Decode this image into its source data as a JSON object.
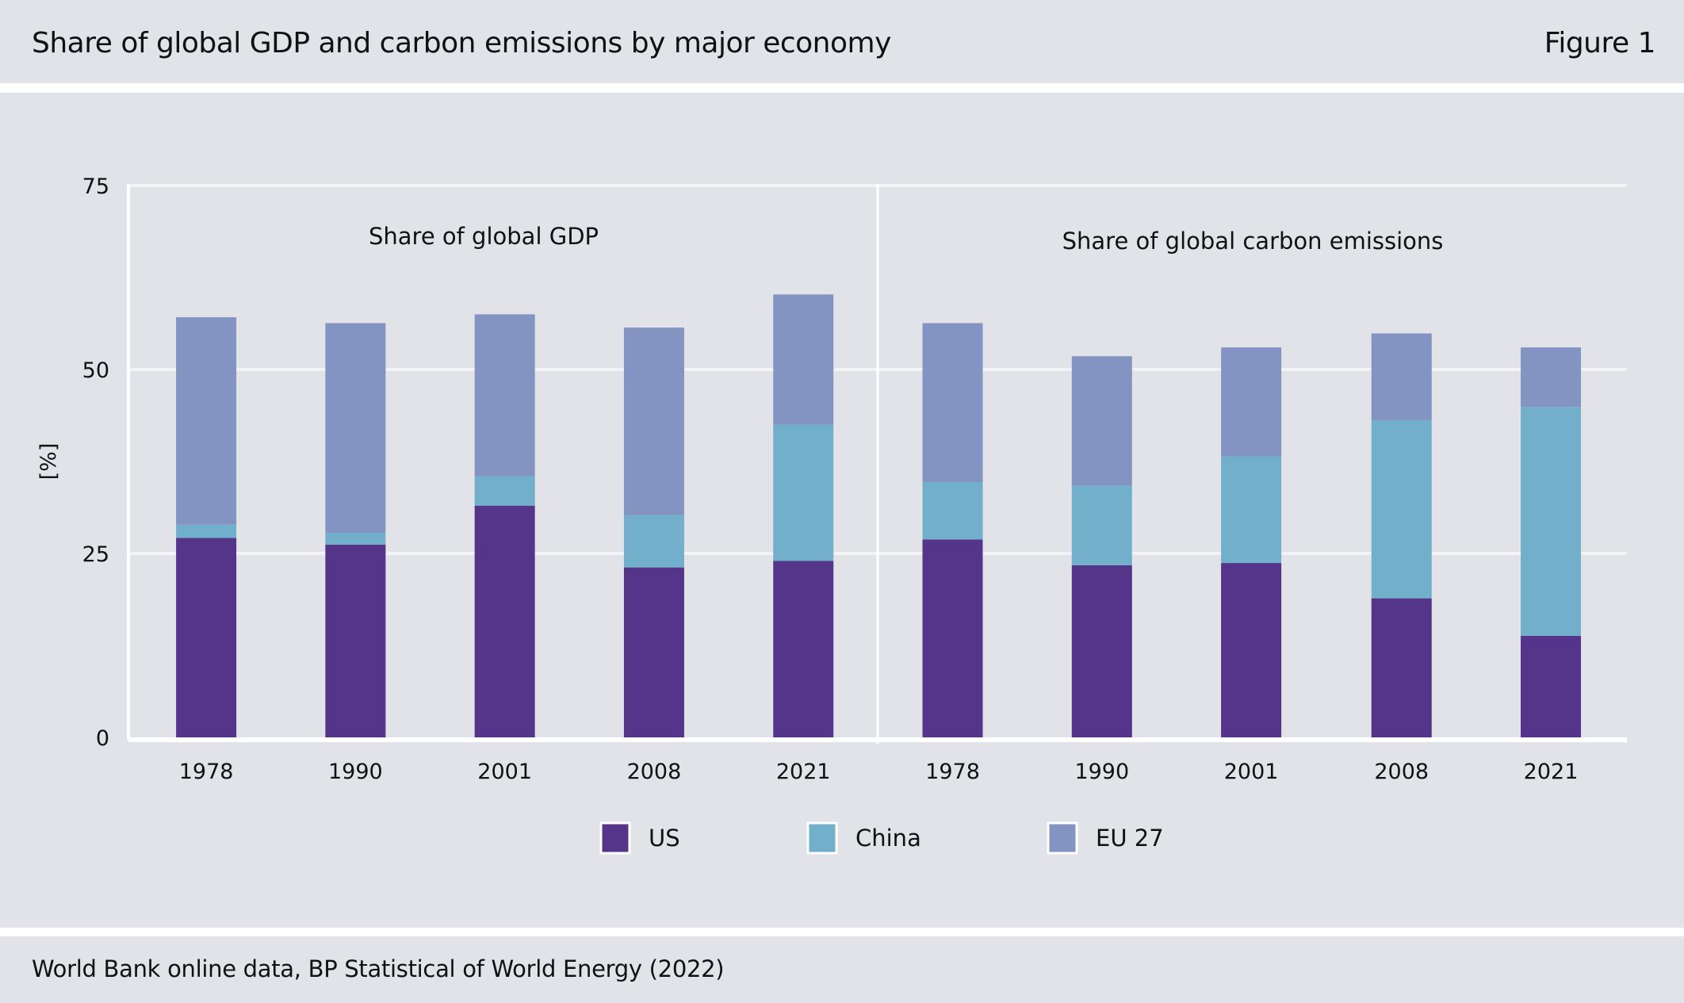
{
  "header": {
    "title": "Share of global GDP and carbon emissions by major economy",
    "figure_label": "Figure 1"
  },
  "footer": {
    "source": "World Bank online data, BP Statistical of World Energy (2022)"
  },
  "chart_data": {
    "type": "bar",
    "stacked": true,
    "title": "Share of global GDP and carbon emissions by major economy",
    "ylabel": "[%]",
    "xlabel": "",
    "ylim": [
      0,
      75
    ],
    "yticks": [
      0,
      25,
      50,
      75
    ],
    "grid": true,
    "legend_position": "bottom-center",
    "colors": {
      "US": "#55358a",
      "China": "#72afca",
      "EU 27": "#8394c2"
    },
    "panels": [
      {
        "label": "Share of global GDP",
        "categories": [
          "1978",
          "1990",
          "2001",
          "2008",
          "2021"
        ],
        "series": [
          {
            "name": "US",
            "values": [
              27.1,
              26.2,
              31.5,
              23.1,
              24.0
            ]
          },
          {
            "name": "China",
            "values": [
              1.8,
              1.6,
              4.0,
              7.1,
              18.5
            ]
          },
          {
            "name": "EU 27",
            "values": [
              28.2,
              28.5,
              22.0,
              25.5,
              17.7
            ]
          }
        ]
      },
      {
        "label": "Share of global carbon emissions",
        "categories": [
          "1978",
          "1990",
          "2001",
          "2008",
          "2021"
        ],
        "series": [
          {
            "name": "US",
            "values": [
              26.9,
              23.4,
              23.7,
              18.9,
              13.8
            ]
          },
          {
            "name": "China",
            "values": [
              7.8,
              10.8,
              14.5,
              24.2,
              31.1
            ]
          },
          {
            "name": "EU 27",
            "values": [
              21.6,
              17.6,
              14.8,
              11.8,
              8.1
            ]
          }
        ]
      }
    ],
    "legend": [
      "US",
      "China",
      "EU 27"
    ]
  }
}
